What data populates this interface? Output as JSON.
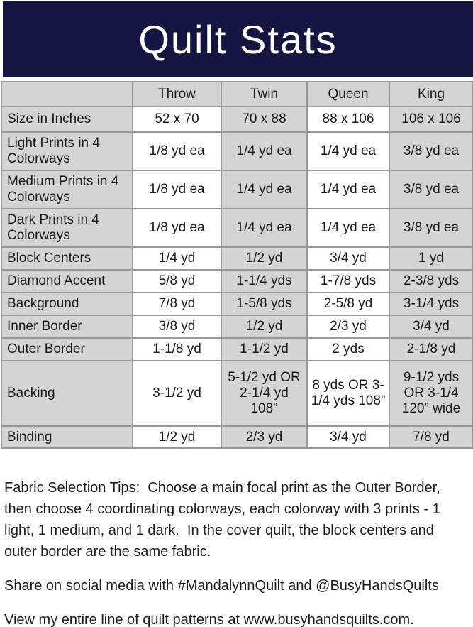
{
  "title": "Quilt Stats",
  "colors": {
    "banner_navy": "#141641",
    "cell_gray": "#d4d4d4",
    "cell_white": "#ffffff",
    "border_gray": "#999999",
    "title_text": "#ffffff",
    "body_text": "#1a1a1a"
  },
  "table": {
    "columns": [
      "",
      "Throw",
      "Twin",
      "Queen",
      "King"
    ],
    "rows": [
      {
        "label": "Size in Inches",
        "values": [
          "52 x 70",
          "70 x 88",
          "88 x 106",
          "106 x 106"
        ],
        "height": 36
      },
      {
        "label": "Light Prints in 4 Colorways",
        "values": [
          "1/8 yd ea",
          "1/4 yd ea",
          "1/4 yd ea",
          "3/8 yd ea"
        ],
        "height": 54
      },
      {
        "label": "Medium Prints in 4 Colorways",
        "values": [
          "1/8 yd ea",
          "1/4 yd ea",
          "1/4 yd ea",
          "3/8 yd ea"
        ],
        "height": 54
      },
      {
        "label": "Dark Prints in 4 Colorways",
        "values": [
          "1/8 yd ea",
          "1/4 yd ea",
          "1/4 yd ea",
          "3/8 yd ea"
        ],
        "height": 54
      },
      {
        "label": "Block Centers",
        "values": [
          "1/4 yd",
          "1/2 yd",
          "3/4 yd",
          "1 yd"
        ],
        "height": 32
      },
      {
        "label": "Diamond Accent",
        "values": [
          "5/8 yd",
          "1-1/4 yds",
          "1-7/8 yds",
          "2-3/8 yds"
        ],
        "height": 32
      },
      {
        "label": "Background",
        "values": [
          "7/8 yd",
          "1-5/8 yds",
          "2-5/8 yd",
          "3-1/4 yds"
        ],
        "height": 32
      },
      {
        "label": "Inner Border",
        "values": [
          "3/8 yd",
          "1/2 yd",
          "2/3 yd",
          "3/4 yd"
        ],
        "height": 32
      },
      {
        "label": "Outer Border",
        "values": [
          "1-1/8 yd",
          "1-1/2 yd",
          "2 yds",
          "2-1/8 yd"
        ],
        "height": 32
      },
      {
        "label": "Backing",
        "values": [
          "3-1/2 yd",
          "5-1/2 yd OR 2-1/4 yd 108”",
          "8 yds OR 3-1/4 yds 108”",
          "9-1/2 yds OR 3-1/4 120” wide"
        ],
        "height": 92
      },
      {
        "label": "Binding",
        "values": [
          "1/2 yd",
          "2/3 yd",
          "3/4 yd",
          "7/8 yd"
        ],
        "height": 31
      }
    ]
  },
  "footer": {
    "tips": "Fabric Selection Tips:  Choose a main focal print as the Outer Border, then choose 4 coordinating colorways, each colorway with 3 prints - 1 light, 1 medium, and 1 dark.  In the cover quilt, the block centers and outer border are the same fabric.",
    "share": "Share on social media with #MandalynnQuilt and @BusyHandsQuilts",
    "patterns": "View my entire line of quilt patterns at www.busyhandsquilts.com."
  }
}
